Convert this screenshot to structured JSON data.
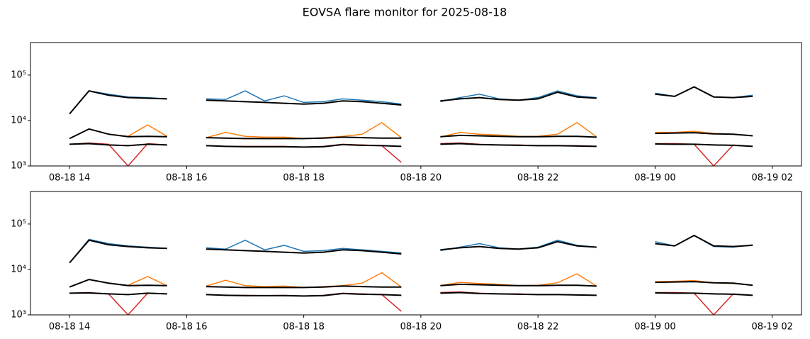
{
  "title": "EOVSA flare monitor for 2025-08-18",
  "chart_data": [
    {
      "type": "line",
      "log_y": true,
      "x": [
        "08-18 14:00",
        "08-18 14:20",
        "08-18 14:40",
        "08-18 15:00",
        "08-18 15:20",
        "08-18 15:40",
        "08-18 16:00",
        "08-18 16:20",
        "08-18 16:40",
        "08-18 17:00",
        "08-18 17:20",
        "08-18 17:40",
        "08-18 18:00",
        "08-18 18:20",
        "08-18 18:40",
        "08-18 19:00",
        "08-18 19:20",
        "08-18 19:40",
        "08-18 20:00",
        "08-18 20:20",
        "08-18 20:40",
        "08-18 21:00",
        "08-18 21:20",
        "08-18 21:40",
        "08-18 22:00",
        "08-18 22:20",
        "08-18 22:40",
        "08-18 23:00",
        "08-18 23:20",
        "08-18 23:40",
        "08-19 00:00",
        "08-19 00:20",
        "08-19 00:40",
        "08-19 01:00",
        "08-19 01:20",
        "08-19 01:40"
      ],
      "series": [
        {
          "color": "#1f77b4",
          "values": [
            14000,
            45000,
            38000,
            33000,
            32000,
            30000,
            null,
            30000,
            29000,
            45000,
            27000,
            35000,
            25000,
            26000,
            30000,
            28000,
            26000,
            23000,
            null,
            26000,
            32000,
            38000,
            30000,
            28000,
            32000,
            45000,
            35000,
            32000,
            null,
            null,
            40000,
            34000,
            55000,
            33000,
            32000,
            36000
          ]
        },
        {
          "color": "#ff7f0e",
          "values": [
            4000,
            6500,
            5000,
            4500,
            8000,
            4500,
            null,
            4200,
            5500,
            4500,
            4300,
            4300,
            4000,
            4200,
            4500,
            5000,
            9000,
            4200,
            null,
            4300,
            5500,
            5000,
            4800,
            4500,
            4500,
            5000,
            9000,
            4400,
            null,
            null,
            5500,
            5500,
            5800,
            5200,
            5000,
            4600
          ]
        },
        {
          "color": "#d62728",
          "values": [
            3000,
            3200,
            3000,
            1000,
            3100,
            2900,
            null,
            2800,
            2700,
            2700,
            2700,
            2700,
            2600,
            2700,
            3000,
            2900,
            2800,
            1200,
            null,
            3100,
            3200,
            3000,
            2900,
            2900,
            2800,
            2800,
            2800,
            2700,
            null,
            null,
            3100,
            3100,
            3000,
            1000,
            2900,
            2700
          ]
        },
        {
          "color": "#000000",
          "values": [
            14000,
            45000,
            36000,
            32000,
            31000,
            30000,
            null,
            28000,
            27000,
            26000,
            25000,
            24000,
            23000,
            24000,
            27000,
            26000,
            24000,
            22000,
            null,
            27000,
            30000,
            32000,
            29000,
            28000,
            30000,
            42000,
            33000,
            31000,
            null,
            null,
            38000,
            34000,
            55000,
            33000,
            32000,
            34000
          ]
        },
        {
          "color": "#000000",
          "values": [
            4000,
            6500,
            5000,
            4400,
            4500,
            4400,
            null,
            4200,
            4100,
            4000,
            4000,
            4000,
            4000,
            4100,
            4300,
            4200,
            4100,
            4100,
            null,
            4400,
            4700,
            4600,
            4500,
            4400,
            4400,
            4500,
            4500,
            4300,
            null,
            null,
            5200,
            5300,
            5400,
            5100,
            5000,
            4600
          ]
        },
        {
          "color": "#000000",
          "values": [
            3000,
            3100,
            2900,
            2800,
            3000,
            2900,
            null,
            2800,
            2700,
            2650,
            2650,
            2650,
            2600,
            2650,
            2950,
            2850,
            2800,
            2700,
            null,
            3000,
            3100,
            2950,
            2900,
            2850,
            2800,
            2800,
            2750,
            2700,
            null,
            null,
            3050,
            3000,
            3000,
            2900,
            2850,
            2700
          ]
        }
      ],
      "xlim": [
        "08-18 13:20",
        "08-19 02:30"
      ],
      "xticks": [
        "08-18 14",
        "08-18 16",
        "08-18 18",
        "08-18 20",
        "08-18 22",
        "08-19 00",
        "08-19 02"
      ],
      "ylim": [
        1000,
        520000
      ],
      "yticks": [
        {
          "value": 1000,
          "label": "10³"
        },
        {
          "value": 10000,
          "label": "10⁴"
        },
        {
          "value": 100000,
          "label": "10⁵"
        }
      ]
    },
    {
      "type": "line",
      "log_y": true,
      "x": [
        "08-18 14:00",
        "08-18 14:20",
        "08-18 14:40",
        "08-18 15:00",
        "08-18 15:20",
        "08-18 15:40",
        "08-18 16:00",
        "08-18 16:20",
        "08-18 16:40",
        "08-18 17:00",
        "08-18 17:20",
        "08-18 17:40",
        "08-18 18:00",
        "08-18 18:20",
        "08-18 18:40",
        "08-18 19:00",
        "08-18 19:20",
        "08-18 19:40",
        "08-18 20:00",
        "08-18 20:20",
        "08-18 20:40",
        "08-18 21:00",
        "08-18 21:20",
        "08-18 21:40",
        "08-18 22:00",
        "08-18 22:20",
        "08-18 22:40",
        "08-18 23:00",
        "08-18 23:20",
        "08-18 23:40",
        "08-19 00:00",
        "08-19 00:20",
        "08-19 00:40",
        "08-19 01:00",
        "08-19 01:20",
        "08-19 01:40"
      ],
      "series": [
        {
          "color": "#1f77b4",
          "values": [
            14000,
            46000,
            37000,
            33000,
            31000,
            29000,
            null,
            30000,
            28000,
            44000,
            27000,
            34000,
            25000,
            26000,
            29000,
            27000,
            25000,
            23000,
            null,
            26000,
            31000,
            37000,
            30000,
            28000,
            31000,
            44000,
            34000,
            31000,
            null,
            null,
            41000,
            33000,
            56000,
            32000,
            31000,
            35000
          ]
        },
        {
          "color": "#ff7f0e",
          "values": [
            4100,
            6000,
            5000,
            4500,
            7000,
            4400,
            null,
            4300,
            5800,
            4400,
            4200,
            4300,
            4000,
            4200,
            4400,
            5000,
            8500,
            4100,
            null,
            4400,
            5200,
            4900,
            4700,
            4400,
            4500,
            5100,
            8000,
            4300,
            null,
            null,
            5400,
            5500,
            5700,
            5100,
            4900,
            4500
          ]
        },
        {
          "color": "#d62728",
          "values": [
            3000,
            3100,
            2900,
            1000,
            3000,
            2900,
            null,
            2800,
            2700,
            2700,
            2650,
            2700,
            2600,
            2700,
            3000,
            2900,
            2800,
            1200,
            null,
            3100,
            3200,
            3000,
            2900,
            2900,
            2800,
            2800,
            2750,
            2700,
            null,
            null,
            3100,
            3100,
            3000,
            1000,
            2900,
            2700
          ]
        },
        {
          "color": "#000000",
          "values": [
            14000,
            44000,
            35000,
            32000,
            30000,
            29000,
            null,
            28000,
            27000,
            26000,
            25000,
            24000,
            23000,
            24000,
            27000,
            26000,
            24000,
            22000,
            null,
            27000,
            30000,
            32000,
            29000,
            28000,
            30000,
            41000,
            33000,
            31000,
            null,
            null,
            37000,
            33000,
            56000,
            33000,
            32000,
            34000
          ]
        },
        {
          "color": "#000000",
          "values": [
            4100,
            6000,
            5000,
            4400,
            4500,
            4400,
            null,
            4200,
            4100,
            4000,
            4000,
            4000,
            4000,
            4100,
            4300,
            4200,
            4100,
            4100,
            null,
            4400,
            4700,
            4600,
            4500,
            4400,
            4400,
            4500,
            4500,
            4300,
            null,
            null,
            5200,
            5300,
            5400,
            5100,
            5000,
            4500
          ]
        },
        {
          "color": "#000000",
          "values": [
            3000,
            3050,
            2900,
            2800,
            3000,
            2900,
            null,
            2800,
            2700,
            2650,
            2650,
            2650,
            2600,
            2650,
            2950,
            2850,
            2800,
            2700,
            null,
            3000,
            3100,
            2950,
            2900,
            2850,
            2800,
            2800,
            2750,
            2700,
            null,
            null,
            3050,
            3000,
            3000,
            2900,
            2850,
            2700
          ]
        }
      ],
      "xlim": [
        "08-18 13:20",
        "08-19 02:30"
      ],
      "xticks": [
        "08-18 14",
        "08-18 16",
        "08-18 18",
        "08-18 20",
        "08-18 22",
        "08-19 00",
        "08-19 02"
      ],
      "ylim": [
        1000,
        520000
      ],
      "yticks": [
        {
          "value": 1000,
          "label": "10³"
        },
        {
          "value": 10000,
          "label": "10⁴"
        },
        {
          "value": 100000,
          "label": "10⁵"
        }
      ]
    }
  ]
}
